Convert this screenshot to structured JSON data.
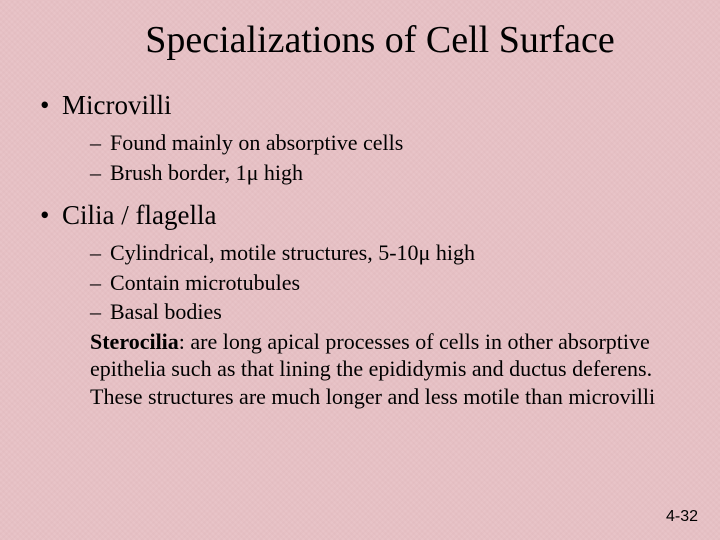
{
  "background_color": "#e8c4c8",
  "text_color": "#000000",
  "title_fontsize": 38,
  "level1_fontsize": 27,
  "level2_fontsize": 22,
  "title": "Specializations of Cell Surface",
  "bullets": {
    "b1": {
      "label": "Microvilli",
      "sub1": "Found mainly on absorptive cells",
      "sub2": "Brush border, 1μ high"
    },
    "b2": {
      "label": "Cilia / flagella",
      "sub1": "Cylindrical, motile structures, 5-10μ high",
      "sub2": "Contain microtubules",
      "sub3": "Basal bodies",
      "sterocilia_label": "Sterocilia",
      "sterocilia_text": ": are long apical processes of cells in other absorptive epithelia such as that lining the epididymis  and ductus deferens. These structures are much longer and less motile than microvilli"
    }
  },
  "page_number": "4-32"
}
